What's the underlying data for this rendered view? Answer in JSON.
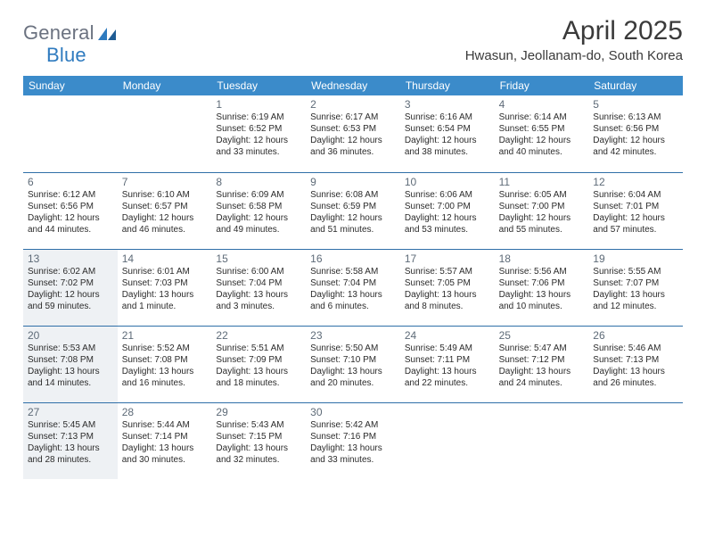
{
  "brand": {
    "name_gray": "General",
    "name_blue": "Blue"
  },
  "title": "April 2025",
  "subtitle": "Hwasun, Jeollanam-do, South Korea",
  "colors": {
    "header_bg": "#3b8bca",
    "header_text": "#ffffff",
    "divider": "#2f6fa8",
    "shade_bg": "#eef1f4",
    "daynum": "#5e6b78",
    "body_text": "#2b2b2b",
    "logo_gray": "#6b7280",
    "logo_blue": "#2f7bbf"
  },
  "day_headers": [
    "Sunday",
    "Monday",
    "Tuesday",
    "Wednesday",
    "Thursday",
    "Friday",
    "Saturday"
  ],
  "weeks": [
    [
      {
        "empty": true
      },
      {
        "empty": true
      },
      {
        "n": "1",
        "sunrise": "Sunrise: 6:19 AM",
        "sunset": "Sunset: 6:52 PM",
        "d1": "Daylight: 12 hours",
        "d2": "and 33 minutes."
      },
      {
        "n": "2",
        "sunrise": "Sunrise: 6:17 AM",
        "sunset": "Sunset: 6:53 PM",
        "d1": "Daylight: 12 hours",
        "d2": "and 36 minutes."
      },
      {
        "n": "3",
        "sunrise": "Sunrise: 6:16 AM",
        "sunset": "Sunset: 6:54 PM",
        "d1": "Daylight: 12 hours",
        "d2": "and 38 minutes."
      },
      {
        "n": "4",
        "sunrise": "Sunrise: 6:14 AM",
        "sunset": "Sunset: 6:55 PM",
        "d1": "Daylight: 12 hours",
        "d2": "and 40 minutes."
      },
      {
        "n": "5",
        "sunrise": "Sunrise: 6:13 AM",
        "sunset": "Sunset: 6:56 PM",
        "d1": "Daylight: 12 hours",
        "d2": "and 42 minutes."
      }
    ],
    [
      {
        "n": "6",
        "sunrise": "Sunrise: 6:12 AM",
        "sunset": "Sunset: 6:56 PM",
        "d1": "Daylight: 12 hours",
        "d2": "and 44 minutes."
      },
      {
        "n": "7",
        "sunrise": "Sunrise: 6:10 AM",
        "sunset": "Sunset: 6:57 PM",
        "d1": "Daylight: 12 hours",
        "d2": "and 46 minutes."
      },
      {
        "n": "8",
        "sunrise": "Sunrise: 6:09 AM",
        "sunset": "Sunset: 6:58 PM",
        "d1": "Daylight: 12 hours",
        "d2": "and 49 minutes."
      },
      {
        "n": "9",
        "sunrise": "Sunrise: 6:08 AM",
        "sunset": "Sunset: 6:59 PM",
        "d1": "Daylight: 12 hours",
        "d2": "and 51 minutes."
      },
      {
        "n": "10",
        "sunrise": "Sunrise: 6:06 AM",
        "sunset": "Sunset: 7:00 PM",
        "d1": "Daylight: 12 hours",
        "d2": "and 53 minutes."
      },
      {
        "n": "11",
        "sunrise": "Sunrise: 6:05 AM",
        "sunset": "Sunset: 7:00 PM",
        "d1": "Daylight: 12 hours",
        "d2": "and 55 minutes."
      },
      {
        "n": "12",
        "sunrise": "Sunrise: 6:04 AM",
        "sunset": "Sunset: 7:01 PM",
        "d1": "Daylight: 12 hours",
        "d2": "and 57 minutes."
      }
    ],
    [
      {
        "n": "13",
        "shade": true,
        "sunrise": "Sunrise: 6:02 AM",
        "sunset": "Sunset: 7:02 PM",
        "d1": "Daylight: 12 hours",
        "d2": "and 59 minutes."
      },
      {
        "n": "14",
        "sunrise": "Sunrise: 6:01 AM",
        "sunset": "Sunset: 7:03 PM",
        "d1": "Daylight: 13 hours",
        "d2": "and 1 minute."
      },
      {
        "n": "15",
        "sunrise": "Sunrise: 6:00 AM",
        "sunset": "Sunset: 7:04 PM",
        "d1": "Daylight: 13 hours",
        "d2": "and 3 minutes."
      },
      {
        "n": "16",
        "sunrise": "Sunrise: 5:58 AM",
        "sunset": "Sunset: 7:04 PM",
        "d1": "Daylight: 13 hours",
        "d2": "and 6 minutes."
      },
      {
        "n": "17",
        "sunrise": "Sunrise: 5:57 AM",
        "sunset": "Sunset: 7:05 PM",
        "d1": "Daylight: 13 hours",
        "d2": "and 8 minutes."
      },
      {
        "n": "18",
        "sunrise": "Sunrise: 5:56 AM",
        "sunset": "Sunset: 7:06 PM",
        "d1": "Daylight: 13 hours",
        "d2": "and 10 minutes."
      },
      {
        "n": "19",
        "sunrise": "Sunrise: 5:55 AM",
        "sunset": "Sunset: 7:07 PM",
        "d1": "Daylight: 13 hours",
        "d2": "and 12 minutes."
      }
    ],
    [
      {
        "n": "20",
        "shade": true,
        "sunrise": "Sunrise: 5:53 AM",
        "sunset": "Sunset: 7:08 PM",
        "d1": "Daylight: 13 hours",
        "d2": "and 14 minutes."
      },
      {
        "n": "21",
        "sunrise": "Sunrise: 5:52 AM",
        "sunset": "Sunset: 7:08 PM",
        "d1": "Daylight: 13 hours",
        "d2": "and 16 minutes."
      },
      {
        "n": "22",
        "sunrise": "Sunrise: 5:51 AM",
        "sunset": "Sunset: 7:09 PM",
        "d1": "Daylight: 13 hours",
        "d2": "and 18 minutes."
      },
      {
        "n": "23",
        "sunrise": "Sunrise: 5:50 AM",
        "sunset": "Sunset: 7:10 PM",
        "d1": "Daylight: 13 hours",
        "d2": "and 20 minutes."
      },
      {
        "n": "24",
        "sunrise": "Sunrise: 5:49 AM",
        "sunset": "Sunset: 7:11 PM",
        "d1": "Daylight: 13 hours",
        "d2": "and 22 minutes."
      },
      {
        "n": "25",
        "sunrise": "Sunrise: 5:47 AM",
        "sunset": "Sunset: 7:12 PM",
        "d1": "Daylight: 13 hours",
        "d2": "and 24 minutes."
      },
      {
        "n": "26",
        "sunrise": "Sunrise: 5:46 AM",
        "sunset": "Sunset: 7:13 PM",
        "d1": "Daylight: 13 hours",
        "d2": "and 26 minutes."
      }
    ],
    [
      {
        "n": "27",
        "shade": true,
        "sunrise": "Sunrise: 5:45 AM",
        "sunset": "Sunset: 7:13 PM",
        "d1": "Daylight: 13 hours",
        "d2": "and 28 minutes."
      },
      {
        "n": "28",
        "sunrise": "Sunrise: 5:44 AM",
        "sunset": "Sunset: 7:14 PM",
        "d1": "Daylight: 13 hours",
        "d2": "and 30 minutes."
      },
      {
        "n": "29",
        "sunrise": "Sunrise: 5:43 AM",
        "sunset": "Sunset: 7:15 PM",
        "d1": "Daylight: 13 hours",
        "d2": "and 32 minutes."
      },
      {
        "n": "30",
        "sunrise": "Sunrise: 5:42 AM",
        "sunset": "Sunset: 7:16 PM",
        "d1": "Daylight: 13 hours",
        "d2": "and 33 minutes."
      },
      {
        "empty": true
      },
      {
        "empty": true
      },
      {
        "empty": true
      }
    ]
  ]
}
